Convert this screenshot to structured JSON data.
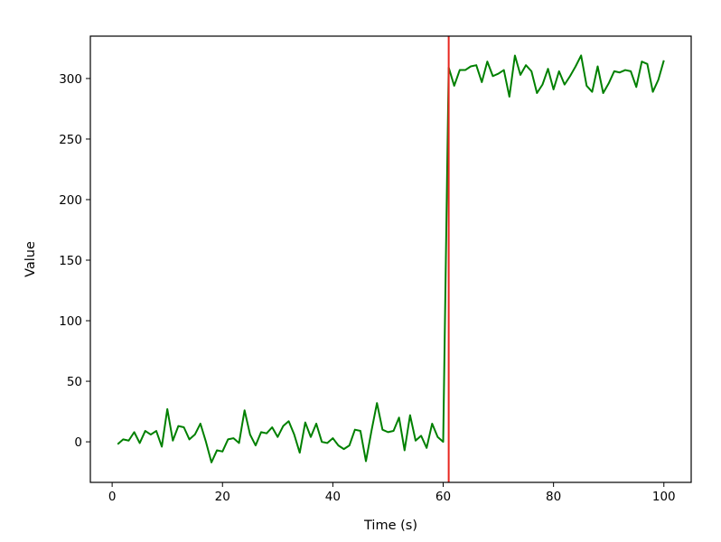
{
  "chart_data": {
    "type": "line",
    "title": "",
    "xlabel": "Time (s)",
    "ylabel": "Value",
    "xlim": [
      -3.95,
      104.95
    ],
    "ylim": [
      -33.5,
      335
    ],
    "x_ticks": [
      0,
      20,
      40,
      60,
      80,
      100
    ],
    "y_ticks": [
      0,
      50,
      100,
      150,
      200,
      250,
      300
    ],
    "grid": false,
    "series": [
      {
        "color": "#008000",
        "x": [
          1,
          2,
          3,
          4,
          5,
          6,
          7,
          8,
          9,
          10,
          11,
          12,
          13,
          14,
          15,
          16,
          17,
          18,
          19,
          20,
          21,
          22,
          23,
          24,
          25,
          26,
          27,
          28,
          29,
          30,
          31,
          32,
          33,
          34,
          35,
          36,
          37,
          38,
          39,
          40,
          41,
          42,
          43,
          44,
          45,
          46,
          47,
          48,
          49,
          50,
          51,
          52,
          53,
          54,
          55,
          56,
          57,
          58,
          59,
          60,
          61,
          62,
          63,
          64,
          65,
          66,
          67,
          68,
          69,
          70,
          71,
          72,
          73,
          74,
          75,
          76,
          77,
          78,
          79,
          80,
          81,
          82,
          83,
          84,
          85,
          86,
          87,
          88,
          89,
          90,
          91,
          92,
          93,
          94,
          95,
          96,
          97,
          98,
          99,
          100
        ],
        "values": [
          -2,
          2,
          1,
          8,
          -1,
          9,
          6,
          9,
          -4,
          27,
          1,
          13,
          12,
          2,
          6,
          15,
          0,
          -17,
          -7,
          -8,
          2,
          3,
          -1,
          26,
          6,
          -3,
          8,
          7,
          12,
          4,
          13,
          17,
          6,
          -9,
          16,
          4,
          15,
          0,
          -1,
          3,
          -3,
          -6,
          -3,
          10,
          9,
          -16,
          9,
          32,
          10,
          8,
          9,
          20,
          -7,
          22,
          1,
          5,
          -5,
          15,
          4,
          0,
          309,
          294,
          307,
          307,
          310,
          311,
          297,
          314,
          302,
          304,
          307,
          285,
          319,
          303,
          311,
          306,
          288,
          295,
          308,
          291,
          306,
          295,
          302,
          310,
          319,
          294,
          289,
          310,
          288,
          296,
          306,
          305,
          307,
          306,
          293,
          314,
          312,
          289,
          299,
          315
        ]
      }
    ],
    "vlines": [
      {
        "x": 61,
        "color": "#e8251f"
      }
    ]
  }
}
